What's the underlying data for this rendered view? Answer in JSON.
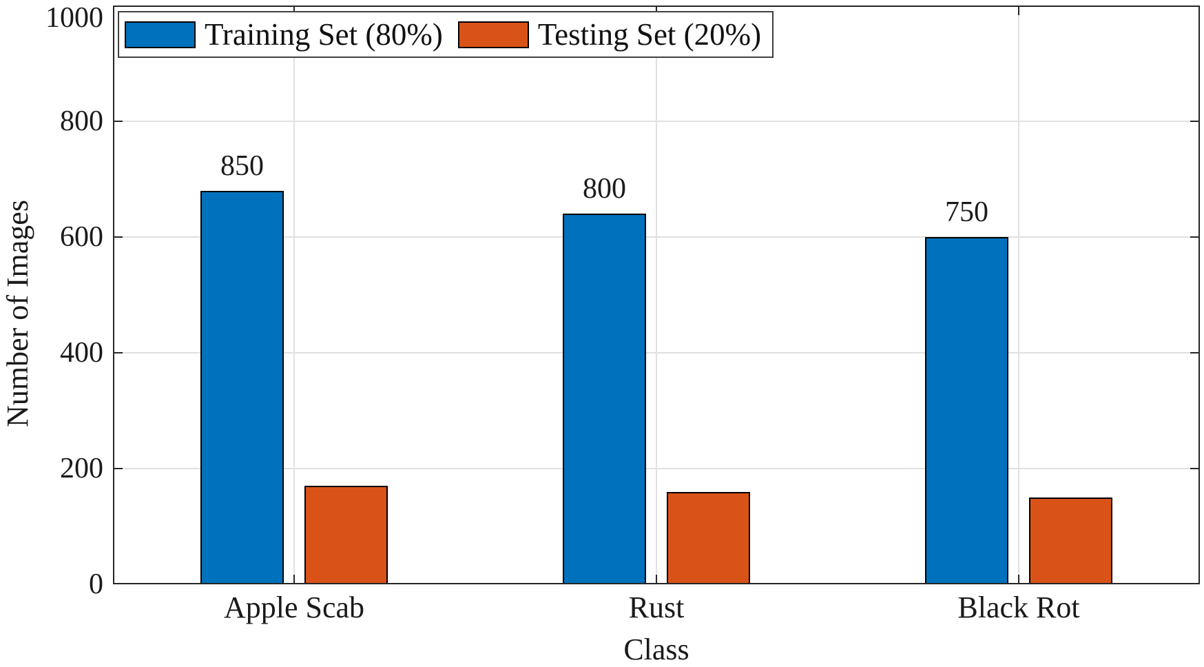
{
  "figure": {
    "background_color": "#ffffff",
    "axis_color": "#262626",
    "grid_color": "#e0e0e0",
    "bar_edge_color": "#000000",
    "text_color": "#1a1a1a"
  },
  "chart_data": {
    "type": "bar",
    "title": "",
    "xlabel": "Class",
    "ylabel": "Number of Images",
    "categories": [
      "Apple Scab",
      "Rust",
      "Black Rot"
    ],
    "series": [
      {
        "name": "Training Set (80%)",
        "color": "#0072BD",
        "values": [
          680,
          640,
          600
        ]
      },
      {
        "name": "Testing Set (20%)",
        "color": "#D95319",
        "values": [
          170,
          160,
          150
        ]
      }
    ],
    "value_labels": {
      "above_series": 0,
      "labels": [
        "850",
        "800",
        "750"
      ]
    },
    "ylim": [
      0,
      1000
    ],
    "yticks": [
      0,
      200,
      400,
      600,
      800,
      1000
    ],
    "ytick_labels": [
      "0",
      "200",
      "400",
      "600",
      "800",
      "1000"
    ],
    "grid": true,
    "grid_vertical": true,
    "legend_position": "top-left"
  }
}
